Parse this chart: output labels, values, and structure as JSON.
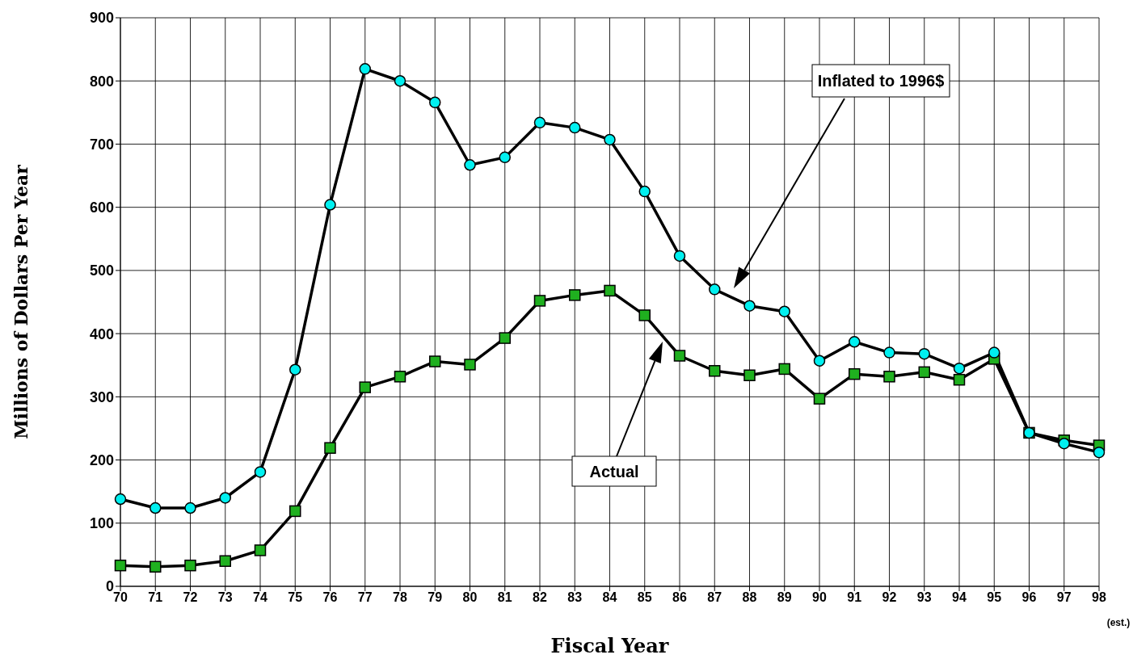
{
  "chart_data": {
    "type": "line",
    "xlabel": "Fiscal Year",
    "ylabel": "Millions of Dollars Per Year",
    "categories": [
      "70",
      "71",
      "72",
      "73",
      "74",
      "75",
      "76",
      "77",
      "78",
      "79",
      "80",
      "81",
      "82",
      "83",
      "84",
      "85",
      "86",
      "87",
      "88",
      "89",
      "90",
      "91",
      "92",
      "93",
      "94",
      "95",
      "96",
      "97",
      "98"
    ],
    "series": [
      {
        "name": "Inflated to 1996$",
        "color": "#00f0f0",
        "marker": "circle",
        "values": [
          138,
          124,
          124,
          140,
          181,
          343,
          604,
          819,
          800,
          766,
          667,
          679,
          734,
          726,
          707,
          625,
          523,
          470,
          444,
          435,
          357,
          387,
          370,
          368,
          345,
          370,
          243,
          226,
          212
        ]
      },
      {
        "name": "Actual",
        "color": "#1fb01f",
        "marker": "square",
        "values": [
          33,
          31,
          33,
          40,
          57,
          119,
          219,
          315,
          332,
          356,
          351,
          393,
          452,
          461,
          468,
          429,
          365,
          341,
          334,
          344,
          297,
          336,
          332,
          339,
          327,
          360,
          243,
          231,
          223
        ]
      }
    ],
    "annotations": [
      "(est.)"
    ],
    "ylim": [
      0,
      900
    ],
    "yticks": [
      0,
      100,
      200,
      300,
      400,
      500,
      600,
      700,
      800,
      900
    ],
    "grid": true,
    "line_style": "solid"
  }
}
